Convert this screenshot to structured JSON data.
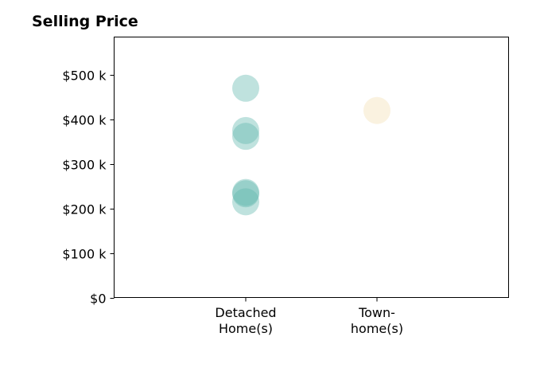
{
  "chart_data": {
    "type": "scatter",
    "title": "Selling Price",
    "xlabel": "",
    "ylabel": "",
    "categories": [
      [
        "Detached",
        "Home(s)"
      ],
      [
        "Town-",
        "home(s)"
      ]
    ],
    "ylim": [
      0,
      585000
    ],
    "yticks": [
      0,
      100000,
      200000,
      300000,
      400000,
      500000
    ],
    "ytick_labels": [
      "$0",
      "$100 k",
      "$200 k",
      "$300 k",
      "$400 k",
      "$500 k"
    ],
    "grid": false,
    "series": [
      {
        "category_index": 0,
        "color": "#5fb7ad",
        "values": [
          470000,
          375000,
          362000,
          236000,
          233000,
          215000
        ]
      },
      {
        "category_index": 1,
        "color": "#f3deb2",
        "values": [
          420000
        ]
      }
    ]
  }
}
